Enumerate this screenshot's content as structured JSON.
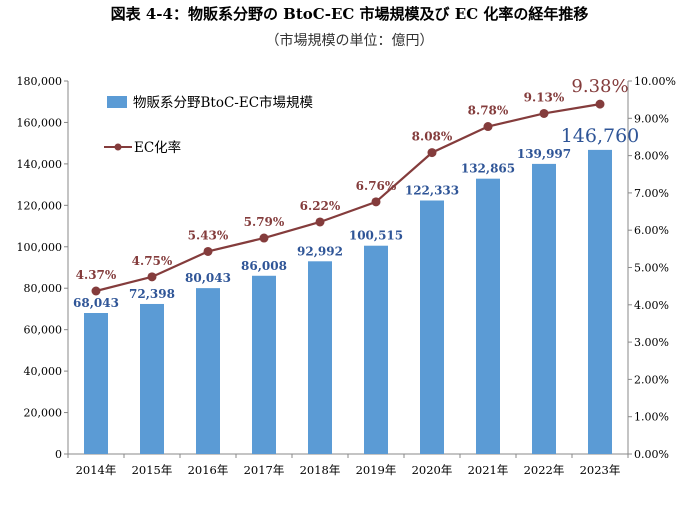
{
  "header": {
    "title": "図表 4-4：物販系分野の BtoC-EC 市場規模及び EC 化率の経年推移",
    "subtitle": "（市場規模の単位：億円）"
  },
  "colors": {
    "bar": "#5b9bd5",
    "bar_label": "#2f5597",
    "line": "#843c3c",
    "axis": "#888888"
  },
  "chart_data": {
    "type": "bar",
    "title": "図表 4-4：物販系分野の BtoC-EC 市場規模及び EC 化率の経年推移",
    "subtitle": "（市場規模の単位：億円）",
    "categories": [
      "2014年",
      "2015年",
      "2016年",
      "2017年",
      "2018年",
      "2019年",
      "2020年",
      "2021年",
      "2022年",
      "2023年"
    ],
    "series": [
      {
        "name": "物販系分野BtoC-EC市場規模",
        "type": "bar",
        "axis": "left",
        "values": [
          68043,
          72398,
          80043,
          86008,
          92992,
          100515,
          122333,
          132865,
          139997,
          146760
        ],
        "labels": [
          "68,043",
          "72,398",
          "80,043",
          "86,008",
          "92,992",
          "100,515",
          "122,333",
          "132,865",
          "139,997",
          "146,760"
        ]
      },
      {
        "name": "EC化率",
        "type": "line",
        "axis": "right",
        "values": [
          4.37,
          4.75,
          5.43,
          5.79,
          6.22,
          6.76,
          8.08,
          8.78,
          9.13,
          9.38
        ],
        "labels": [
          "4.37%",
          "4.75%",
          "5.43%",
          "5.79%",
          "6.22%",
          "6.76%",
          "8.08%",
          "8.78%",
          "9.13%",
          "9.38%"
        ]
      }
    ],
    "y_left": {
      "lim": [
        0,
        180000
      ],
      "ticks": [
        "0",
        "20,000",
        "40,000",
        "60,000",
        "80,000",
        "100,000",
        "120,000",
        "140,000",
        "160,000",
        "180,000"
      ]
    },
    "y_right": {
      "lim": [
        0,
        10
      ],
      "ticks": [
        "0.00%",
        "1.00%",
        "2.00%",
        "3.00%",
        "4.00%",
        "5.00%",
        "6.00%",
        "7.00%",
        "8.00%",
        "9.00%",
        "10.00%"
      ]
    },
    "grid": false,
    "legend": "top-left"
  }
}
